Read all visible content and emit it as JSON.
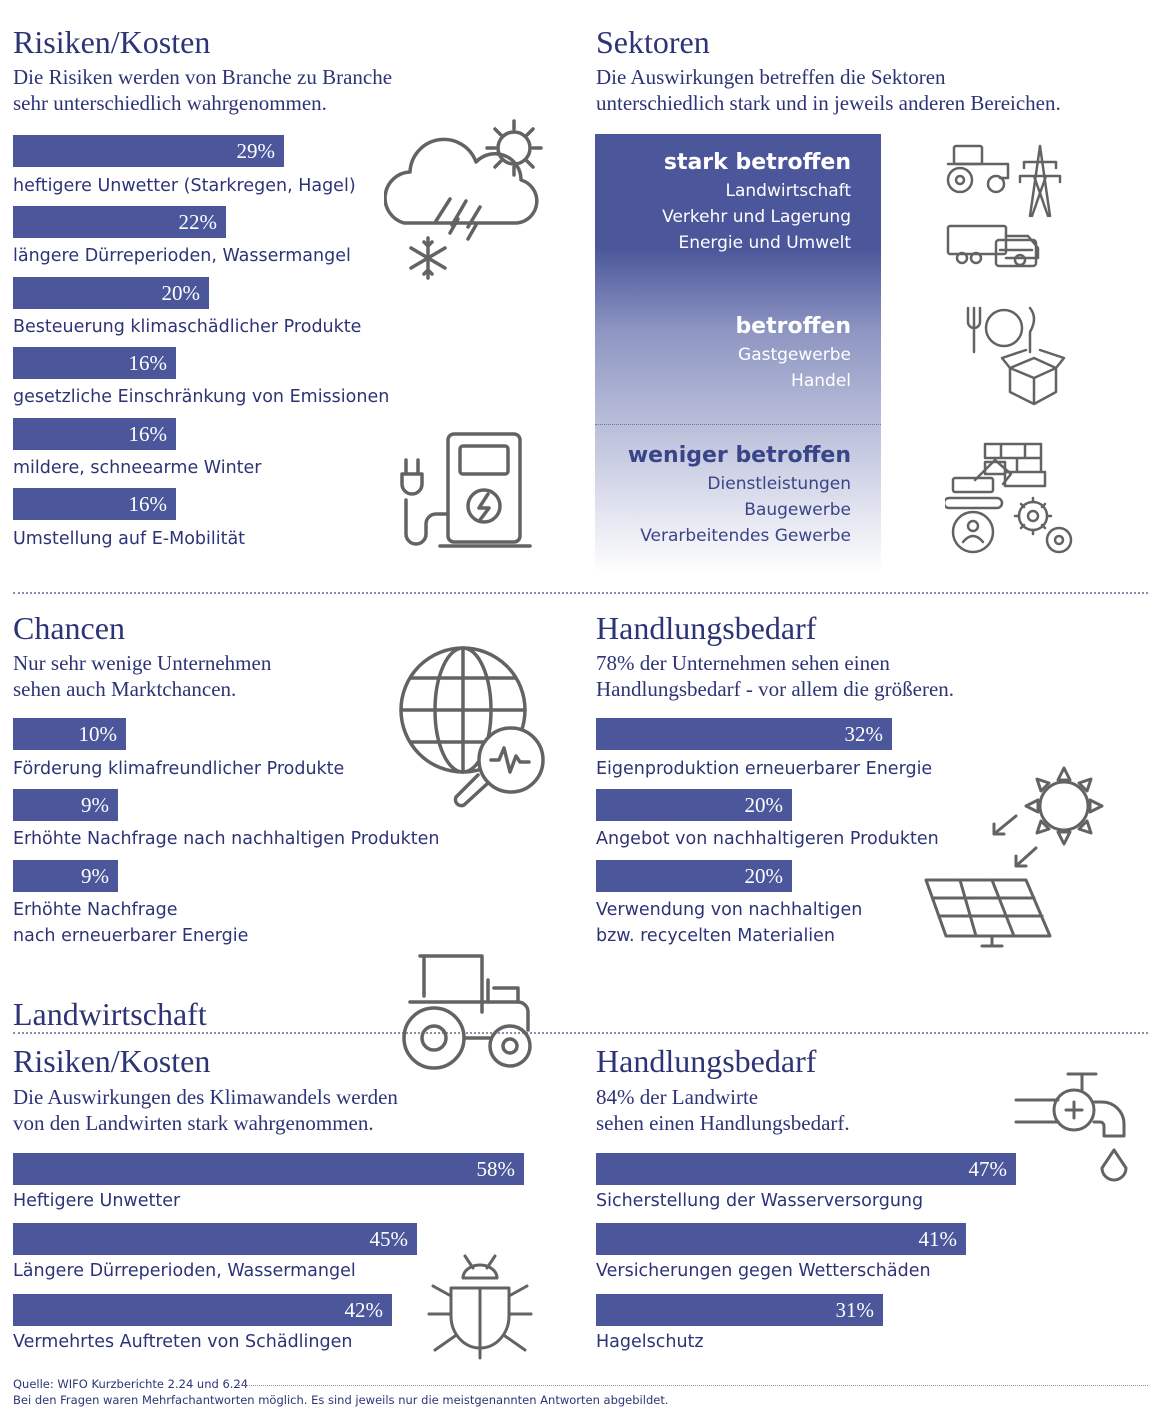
{
  "risiken": {
    "title": "Risiken/Kosten",
    "subtitle_1": "Die Risiken werden von Branche zu Branche",
    "subtitle_2": "sehr unterschiedlich wahrgenommen.",
    "bars": [
      {
        "value": "29%",
        "label": "heftigere Unwetter (Starkregen, Hagel)"
      },
      {
        "value": "22%",
        "label": "längere Dürreperioden, Wassermangel"
      },
      {
        "value": "20%",
        "label": "Besteuerung klimaschädlicher Produkte"
      },
      {
        "value": "16%",
        "label": "gesetzliche Einschränkung von Emissionen"
      },
      {
        "value": "16%",
        "label": "mildere, schneearme Winter"
      },
      {
        "value": "16%",
        "label": "Umstellung auf E-Mobilität"
      }
    ]
  },
  "sektoren": {
    "title": "Sektoren",
    "subtitle_1": "Die Auswirkungen betreffen die Sektoren",
    "subtitle_2": "unterschiedlich stark und in jeweils anderen Bereichen.",
    "groups": [
      {
        "heading": "stark betroffen",
        "items": [
          "Landwirtschaft",
          "Verkehr und Lagerung",
          "Energie und Umwelt"
        ]
      },
      {
        "heading": "betroffen",
        "items": [
          "Gastgewerbe",
          "Handel"
        ]
      },
      {
        "heading": "weniger betroffen",
        "items": [
          "Dienstleistungen",
          "Baugewerbe",
          "Verarbeitendes Gewerbe"
        ]
      }
    ]
  },
  "chancen": {
    "title": "Chancen",
    "subtitle_1": "Nur sehr wenige Unternehmen",
    "subtitle_2": "sehen auch Marktchancen.",
    "bars": [
      {
        "value": "10%",
        "label": "Förderung klimafreundlicher Produkte"
      },
      {
        "value": "9%",
        "label": "Erhöhte Nachfrage nach nachhaltigen Produkten"
      },
      {
        "value": "9%",
        "label": "Erhöhte Nachfrage",
        "label2": "nach erneuerbarer Energie"
      }
    ]
  },
  "handlung": {
    "title": "Handlungsbedarf",
    "subtitle_1": "78% der Unternehmen sehen einen",
    "subtitle_2": "Handlungsbedarf - vor allem die größeren.",
    "bars": [
      {
        "value": "32%",
        "label": "Eigenproduktion erneuerbarer Energie"
      },
      {
        "value": "20%",
        "label": "Angebot von nachhaltigeren Produkten"
      },
      {
        "value": "20%",
        "label": "Verwendung von nachhaltigen",
        "label2": "bzw. recycelten Materialien"
      }
    ]
  },
  "landwirtschaft": {
    "title": "Landwirtschaft",
    "risiken_title": "Risiken/Kosten",
    "risiken_sub_1": "Die Auswirkungen des Klimawandels werden",
    "risiken_sub_2": "von den Landwirten stark wahrgenommen.",
    "risiken_bars": [
      {
        "value": "58%",
        "label": "Heftigere Unwetter"
      },
      {
        "value": "45%",
        "label": "Längere Dürreperioden, Wassermangel"
      },
      {
        "value": "42%",
        "label": "Vermehrtes Auftreten von Schädlingen"
      }
    ],
    "handlung_title": "Handlungsbedarf",
    "handlung_sub_1": "84% der Landwirte",
    "handlung_sub_2": "sehen einen Handlungsbedarf.",
    "handlung_bars": [
      {
        "value": "47%",
        "label": "Sicherstellung der Wasserversorgung"
      },
      {
        "value": "41%",
        "label": "Versicherungen gegen Wetterschäden"
      },
      {
        "value": "31%",
        "label": "Hagelschutz"
      }
    ]
  },
  "footer": {
    "source": "Quelle: WIFO Kurzberichte 2.24 und 6.24",
    "note": "Bei den Fragen waren Mehrfachantworten möglich. Es sind jeweils nur die meistgenannten Antworten abgebildet."
  },
  "chart_data": [
    {
      "type": "bar",
      "title": "Risiken/Kosten",
      "categories": [
        "heftigere Unwetter (Starkregen, Hagel)",
        "längere Dürreperioden, Wassermangel",
        "Besteuerung klimaschädlicher Produkte",
        "gesetzliche Einschränkung von Emissionen",
        "mildere, schneearme Winter",
        "Umstellung auf E-Mobilität"
      ],
      "values": [
        29,
        22,
        20,
        16,
        16,
        16
      ]
    },
    {
      "type": "bar",
      "title": "Chancen",
      "categories": [
        "Förderung klimafreundlicher Produkte",
        "Erhöhte Nachfrage nach nachhaltigen Produkten",
        "Erhöhte Nachfrage nach erneuerbarer Energie"
      ],
      "values": [
        10,
        9,
        9
      ]
    },
    {
      "type": "bar",
      "title": "Handlungsbedarf",
      "categories": [
        "Eigenproduktion erneuerbarer Energie",
        "Angebot von nachhaltigeren Produkten",
        "Verwendung von nachhaltigen bzw. recycelten Materialien"
      ],
      "values": [
        32,
        20,
        20
      ]
    },
    {
      "type": "bar",
      "title": "Risiken/Kosten",
      "categories": [
        "Heftigere Unwetter",
        "Längere Dürreperioden, Wassermangel",
        "Vermehrtes Auftreten von Schädlingen"
      ],
      "values": [
        58,
        45,
        42
      ]
    },
    {
      "type": "bar",
      "title": "Handlungsbedarf",
      "categories": [
        "Sicherstellung der Wasserversorgung",
        "Versicherungen gegen Wetterschäden",
        "Hagelschutz"
      ],
      "values": [
        47,
        41,
        31
      ]
    }
  ]
}
